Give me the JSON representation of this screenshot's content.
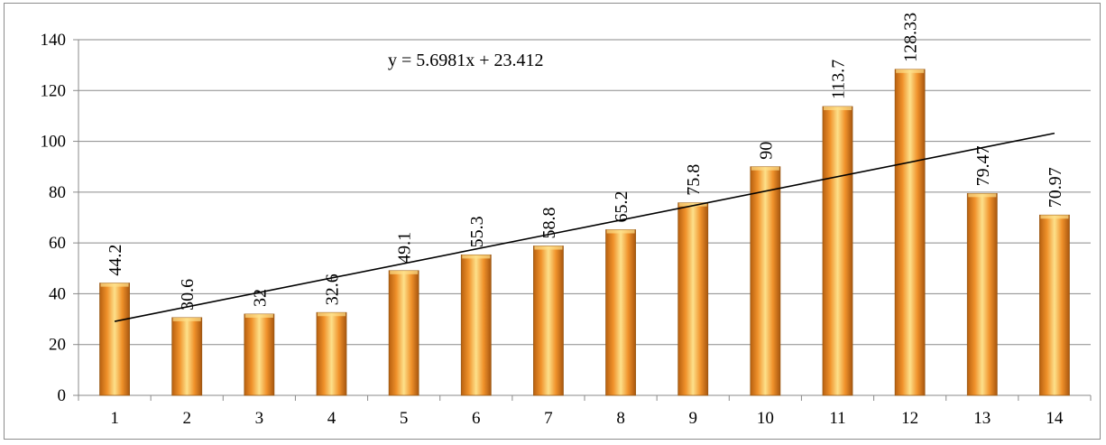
{
  "chart_data": {
    "type": "bar",
    "categories": [
      "1",
      "2",
      "3",
      "4",
      "5",
      "6",
      "7",
      "8",
      "9",
      "10",
      "11",
      "12",
      "13",
      "14"
    ],
    "values": [
      44.2,
      30.6,
      32,
      32.6,
      49.1,
      55.3,
      58.8,
      65.2,
      75.8,
      90,
      113.7,
      128.33,
      79.47,
      70.97
    ],
    "data_labels": [
      "44.2",
      "30.6",
      "32",
      "32.6",
      "49.1",
      "55.3",
      "58.8",
      "65.2",
      "75.8",
      "90",
      "113.7",
      "128.33",
      "79.47",
      "70.97"
    ],
    "ylim": [
      0,
      140
    ],
    "yticks": [
      0,
      20,
      40,
      60,
      80,
      100,
      120,
      140
    ],
    "ytick_labels": [
      "0",
      "20",
      "40",
      "60",
      "80",
      "100",
      "120",
      "140"
    ],
    "grid": true,
    "trendline": {
      "type": "linear",
      "slope": 5.6981,
      "intercept": 23.412,
      "equation": "y = 5.6981x + 23.412"
    },
    "bar_color": "#f0922b",
    "bar_highlight": "#fde08a",
    "bar_edge": "#9a5a16",
    "title": "",
    "xlabel": "",
    "ylabel": ""
  }
}
